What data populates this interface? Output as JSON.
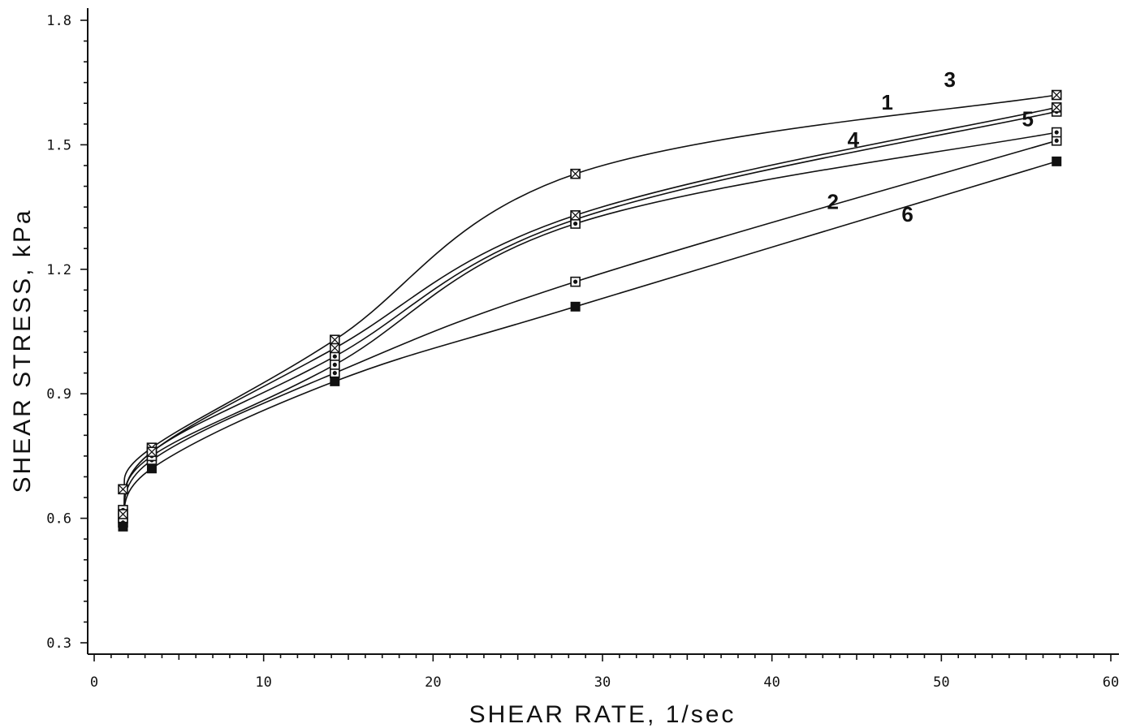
{
  "chart_data": {
    "type": "line",
    "title": "",
    "xlabel": "SHEAR RATE, 1/sec",
    "ylabel": "SHEAR STRESS, kPa",
    "xlim": [
      0,
      60
    ],
    "ylim": [
      0.3,
      1.8
    ],
    "xticks": [
      0,
      10,
      20,
      30,
      40,
      50,
      60
    ],
    "yticks": [
      0.3,
      0.6,
      0.9,
      1.2,
      1.5,
      1.8
    ],
    "xtick_labels": [
      "0",
      "10",
      "20",
      "30",
      "40",
      "50",
      "60"
    ],
    "ytick_labels": [
      "0.3",
      "0.6",
      "0.9",
      "1.2",
      "1.5",
      "1.8"
    ],
    "grid": false,
    "legend": "none",
    "x": [
      1.7,
      3.4,
      14.2,
      28.4,
      56.8
    ],
    "series": [
      {
        "name": "1",
        "marker": "square-dot",
        "values": [
          0.6,
          0.76,
          0.99,
          1.32,
          1.58
        ]
      },
      {
        "name": "2",
        "marker": "square-dot",
        "values": [
          0.59,
          0.74,
          0.95,
          1.17,
          1.51
        ]
      },
      {
        "name": "3",
        "marker": "square-x",
        "values": [
          0.67,
          0.77,
          1.03,
          1.43,
          1.62
        ]
      },
      {
        "name": "4",
        "marker": "square-dot",
        "values": [
          0.62,
          0.75,
          0.97,
          1.31,
          1.53
        ]
      },
      {
        "name": "5",
        "marker": "square-x",
        "values": [
          0.61,
          0.76,
          1.01,
          1.33,
          1.59
        ]
      },
      {
        "name": "6",
        "marker": "filled-square",
        "values": [
          0.58,
          0.72,
          0.93,
          1.11,
          1.46
        ]
      }
    ],
    "labels": [
      "1",
      "2",
      "3",
      "4",
      "5",
      "6"
    ]
  }
}
